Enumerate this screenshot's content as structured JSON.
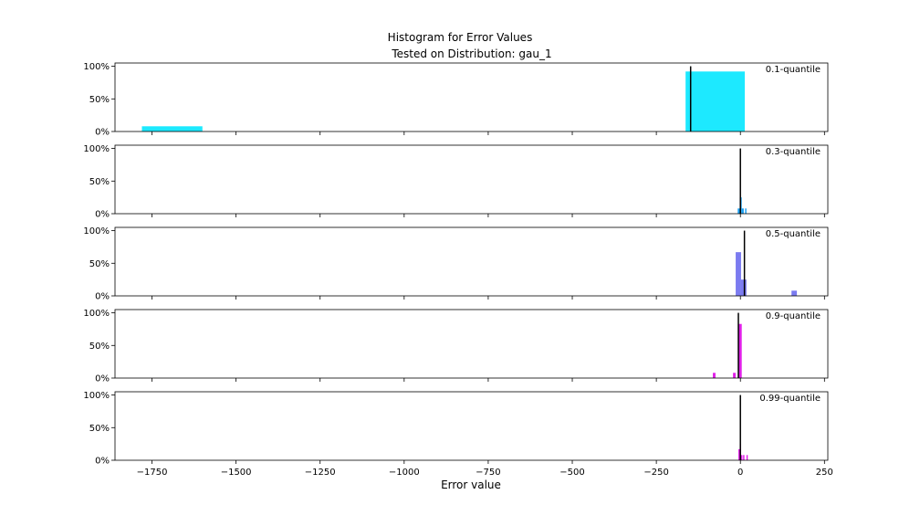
{
  "chart_data": {
    "type": "histogram",
    "title": "Histogram for Error Values",
    "subtitle": "Tested on Distribution: gau_1",
    "xlabel": "Error value",
    "xlim": [
      -1860,
      260
    ],
    "ylim": [
      0,
      1.05
    ],
    "x_ticks": [
      {
        "value": -1750,
        "label": "−1750"
      },
      {
        "value": -1500,
        "label": "−1500"
      },
      {
        "value": -1250,
        "label": "−1250"
      },
      {
        "value": -1000,
        "label": "−1000"
      },
      {
        "value": -750,
        "label": "−750"
      },
      {
        "value": -500,
        "label": "−500"
      },
      {
        "value": -250,
        "label": "−250"
      },
      {
        "value": 0,
        "label": "0"
      },
      {
        "value": 250,
        "label": "250"
      }
    ],
    "y_ticks": [
      {
        "value": 0,
        "label": "0%"
      },
      {
        "value": 0.5,
        "label": "50%"
      },
      {
        "value": 1.0,
        "label": "100%"
      }
    ],
    "panels": [
      {
        "label": "0.1-quantile",
        "color": "#1de9ff",
        "marker": -148,
        "bars": [
          {
            "x0": -1780,
            "x1": -1600,
            "value": 0.08
          },
          {
            "x0": -163,
            "x1": 13,
            "value": 0.92
          }
        ]
      },
      {
        "label": "0.3-quantile",
        "color": "#1a9ff0",
        "marker": 0,
        "bars": [
          {
            "x0": -8,
            "x1": -2,
            "value": 0.08
          },
          {
            "x0": -2,
            "x1": 4,
            "value": 0.25
          },
          {
            "x0": 4,
            "x1": 10,
            "value": 0.08
          },
          {
            "x0": 14,
            "x1": 18,
            "value": 0.08
          }
        ]
      },
      {
        "label": "0.5-quantile",
        "color": "#7b7bf0",
        "marker": 12,
        "bars": [
          {
            "x0": -14,
            "x1": 2,
            "value": 0.67
          },
          {
            "x0": 2,
            "x1": 18,
            "value": 0.25
          },
          {
            "x0": 152,
            "x1": 168,
            "value": 0.08
          }
        ]
      },
      {
        "label": "0.9-quantile",
        "color": "#e020e8",
        "marker": -6,
        "bars": [
          {
            "x0": -82,
            "x1": -74,
            "value": 0.08
          },
          {
            "x0": -22,
            "x1": -14,
            "value": 0.08
          },
          {
            "x0": -6,
            "x1": 4,
            "value": 0.83
          }
        ]
      },
      {
        "label": "0.99-quantile",
        "color": "#e020e8",
        "marker": 0,
        "bars": [
          {
            "x0": -6,
            "x1": -2,
            "value": 0.17
          },
          {
            "x0": -2,
            "x1": 2,
            "value": 0.25
          },
          {
            "x0": 2,
            "x1": 6,
            "value": 0.08
          },
          {
            "x0": 8,
            "x1": 12,
            "value": 0.08
          },
          {
            "x0": 18,
            "x1": 22,
            "value": 0.08
          }
        ]
      }
    ]
  }
}
